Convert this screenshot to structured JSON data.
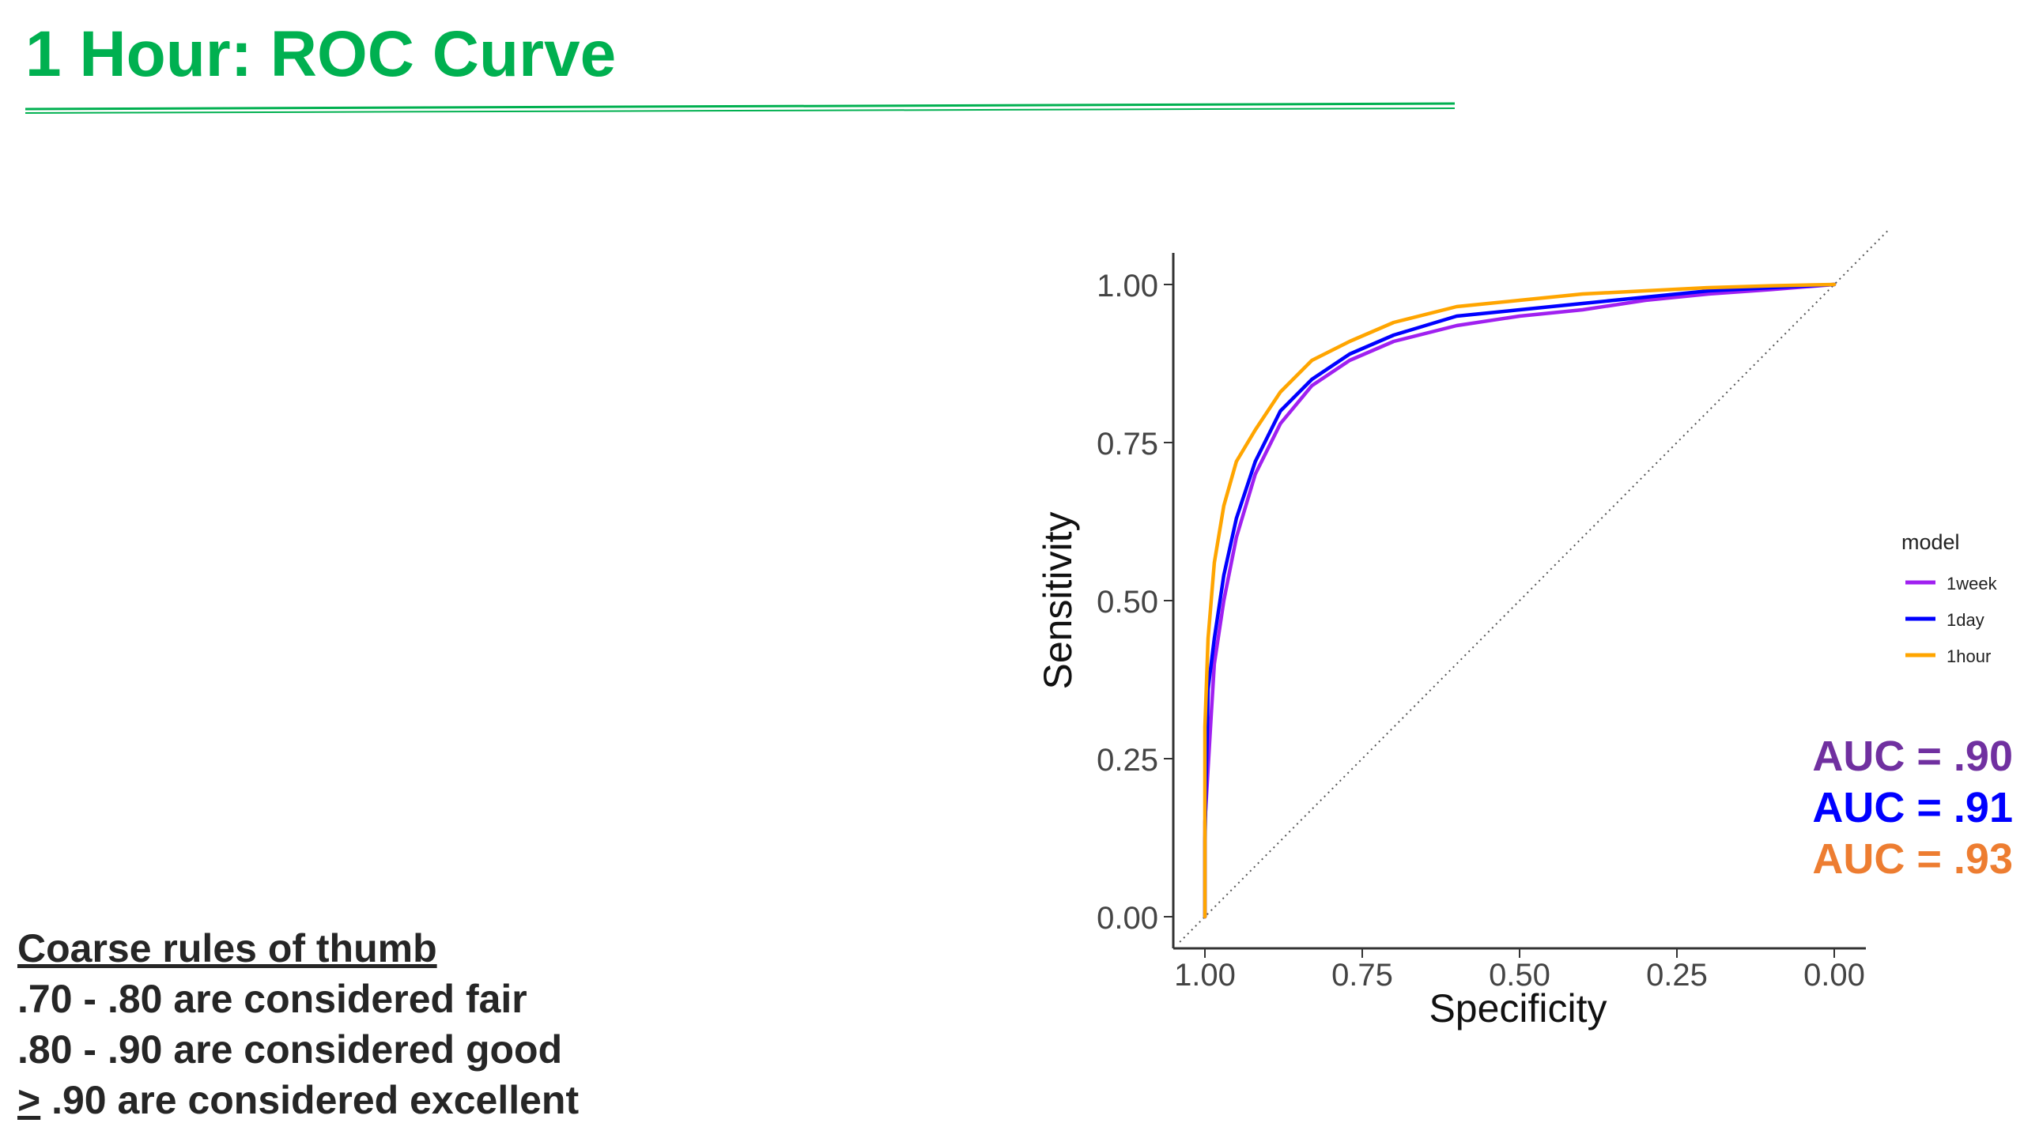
{
  "slide": {
    "title": "1 Hour: ROC Curve"
  },
  "rules": {
    "heading": "Coarse rules of thumb",
    "line1": ".70 - .80 are considered fair",
    "line2": ".80 - .90 are considered good",
    "line3_symbol": ">",
    "line3_rest": " .90 are considered excellent"
  },
  "auc": [
    {
      "text": "AUC = .90",
      "color": "#7030a0"
    },
    {
      "text": "AUC = .91",
      "color": "#0000ff"
    },
    {
      "text": "AUC = .93",
      "color": "#ed7d31"
    }
  ],
  "colors": {
    "title": "#00b050",
    "rule": "#00b050",
    "text": "#262626"
  },
  "chart_data": {
    "type": "line",
    "xlabel": "Specificity",
    "ylabel": "Sensitivity",
    "xlim": [
      1.0,
      0.0
    ],
    "ylim": [
      0.0,
      1.0
    ],
    "x_reversed": true,
    "xticks": [
      "1.00",
      "0.75",
      "0.50",
      "0.25",
      "0.00"
    ],
    "yticks": [
      "0.00",
      "0.25",
      "0.50",
      "0.75",
      "1.00"
    ],
    "grid": false,
    "reference_line": "diagonal dotted",
    "legend": {
      "title": "model",
      "placement": "right"
    },
    "series": [
      {
        "name": "1week",
        "color": "#a020f0",
        "points": [
          [
            1.0,
            0.0
          ],
          [
            1.0,
            0.15
          ],
          [
            0.99,
            0.32
          ],
          [
            0.985,
            0.4
          ],
          [
            0.97,
            0.5
          ],
          [
            0.95,
            0.6
          ],
          [
            0.92,
            0.7
          ],
          [
            0.88,
            0.78
          ],
          [
            0.83,
            0.84
          ],
          [
            0.77,
            0.88
          ],
          [
            0.7,
            0.91
          ],
          [
            0.6,
            0.935
          ],
          [
            0.5,
            0.95
          ],
          [
            0.4,
            0.96
          ],
          [
            0.3,
            0.975
          ],
          [
            0.2,
            0.985
          ],
          [
            0.1,
            0.992
          ],
          [
            0.0,
            1.0
          ]
        ]
      },
      {
        "name": "1day",
        "color": "#0000ff",
        "points": [
          [
            1.0,
            0.0
          ],
          [
            1.0,
            0.12
          ],
          [
            0.995,
            0.36
          ],
          [
            0.985,
            0.44
          ],
          [
            0.97,
            0.54
          ],
          [
            0.95,
            0.63
          ],
          [
            0.92,
            0.72
          ],
          [
            0.88,
            0.8
          ],
          [
            0.83,
            0.85
          ],
          [
            0.77,
            0.89
          ],
          [
            0.7,
            0.92
          ],
          [
            0.6,
            0.95
          ],
          [
            0.5,
            0.96
          ],
          [
            0.4,
            0.97
          ],
          [
            0.3,
            0.98
          ],
          [
            0.2,
            0.99
          ],
          [
            0.1,
            0.995
          ],
          [
            0.0,
            1.0
          ]
        ]
      },
      {
        "name": "1hour",
        "color": "#ffa500",
        "points": [
          [
            1.0,
            0.0
          ],
          [
            1.0,
            0.3
          ],
          [
            0.995,
            0.44
          ],
          [
            0.985,
            0.56
          ],
          [
            0.97,
            0.65
          ],
          [
            0.95,
            0.72
          ],
          [
            0.92,
            0.77
          ],
          [
            0.88,
            0.83
          ],
          [
            0.83,
            0.88
          ],
          [
            0.77,
            0.91
          ],
          [
            0.7,
            0.94
          ],
          [
            0.6,
            0.965
          ],
          [
            0.5,
            0.975
          ],
          [
            0.4,
            0.985
          ],
          [
            0.3,
            0.99
          ],
          [
            0.2,
            0.995
          ],
          [
            0.1,
            0.998
          ],
          [
            0.0,
            1.0
          ]
        ]
      }
    ]
  }
}
